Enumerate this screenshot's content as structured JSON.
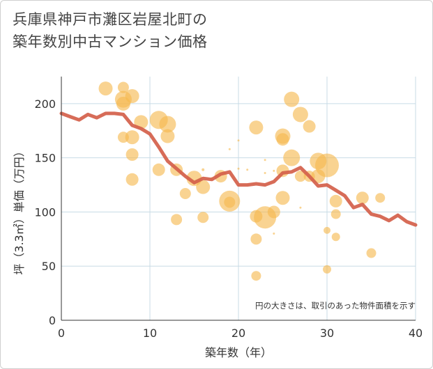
{
  "title": "兵庫県神戸市灘区岩屋北町の\n築年数別中古マンション価格",
  "chart_data": {
    "type": "scatter",
    "xlabel": "築年数（年）",
    "ylabel": "坪（3.3㎡）単価（万円）",
    "xlim": [
      0,
      40
    ],
    "ylim": [
      0,
      225
    ],
    "xticks": [
      0,
      10,
      20,
      30,
      40
    ],
    "yticks": [
      0,
      50,
      100,
      150,
      200
    ],
    "grid": true,
    "annotation": "円の大きさは、取引のあった物件面積を示す",
    "colors": {
      "bubble": "#f5b84e",
      "line": "#d4604a",
      "grid": "#c8dbe6"
    },
    "bubbles": [
      {
        "x": 5,
        "y": 214,
        "s": 10
      },
      {
        "x": 7,
        "y": 215,
        "s": 8
      },
      {
        "x": 8,
        "y": 207,
        "s": 10
      },
      {
        "x": 7,
        "y": 204,
        "s": 12
      },
      {
        "x": 7,
        "y": 200,
        "s": 10
      },
      {
        "x": 9,
        "y": 183,
        "s": 10
      },
      {
        "x": 11,
        "y": 185,
        "s": 13
      },
      {
        "x": 12,
        "y": 181,
        "s": 12
      },
      {
        "x": 7,
        "y": 169,
        "s": 8
      },
      {
        "x": 8,
        "y": 169,
        "s": 10
      },
      {
        "x": 12,
        "y": 170,
        "s": 10
      },
      {
        "x": 8,
        "y": 153,
        "s": 9
      },
      {
        "x": 11,
        "y": 139,
        "s": 9
      },
      {
        "x": 13,
        "y": 139,
        "s": 9
      },
      {
        "x": 8,
        "y": 130,
        "s": 9
      },
      {
        "x": 15,
        "y": 131,
        "s": 11
      },
      {
        "x": 16,
        "y": 123,
        "s": 10
      },
      {
        "x": 14,
        "y": 117,
        "s": 8
      },
      {
        "x": 16,
        "y": 139,
        "s": 2
      },
      {
        "x": 17,
        "y": 131,
        "s": 2
      },
      {
        "x": 18,
        "y": 133,
        "s": 9
      },
      {
        "x": 19,
        "y": 110,
        "s": 15
      },
      {
        "x": 19,
        "y": 109,
        "s": 8
      },
      {
        "x": 13,
        "y": 93,
        "s": 8
      },
      {
        "x": 16,
        "y": 95,
        "s": 8
      },
      {
        "x": 20,
        "y": 166,
        "s": 1.5
      },
      {
        "x": 19,
        "y": 158,
        "s": 1.5
      },
      {
        "x": 20,
        "y": 140,
        "s": 1.5
      },
      {
        "x": 21,
        "y": 139,
        "s": 1.5
      },
      {
        "x": 22,
        "y": 178,
        "s": 10
      },
      {
        "x": 22,
        "y": 96,
        "s": 9
      },
      {
        "x": 22,
        "y": 75,
        "s": 8
      },
      {
        "x": 22,
        "y": 41,
        "s": 7
      },
      {
        "x": 23,
        "y": 95,
        "s": 16
      },
      {
        "x": 23,
        "y": 148,
        "s": 1.5
      },
      {
        "x": 23,
        "y": 136,
        "s": 1.5
      },
      {
        "x": 24,
        "y": 138,
        "s": 1.5
      },
      {
        "x": 24,
        "y": 100,
        "s": 9
      },
      {
        "x": 24,
        "y": 80,
        "s": 1.5
      },
      {
        "x": 25,
        "y": 170,
        "s": 11
      },
      {
        "x": 25,
        "y": 167,
        "s": 9
      },
      {
        "x": 25,
        "y": 138,
        "s": 9
      },
      {
        "x": 25,
        "y": 113,
        "s": 10
      },
      {
        "x": 26,
        "y": 204,
        "s": 11
      },
      {
        "x": 26,
        "y": 150,
        "s": 12
      },
      {
        "x": 27,
        "y": 190,
        "s": 11
      },
      {
        "x": 27,
        "y": 133,
        "s": 8
      },
      {
        "x": 27,
        "y": 104,
        "s": 1.5
      },
      {
        "x": 28,
        "y": 179,
        "s": 9
      },
      {
        "x": 28,
        "y": 133,
        "s": 8
      },
      {
        "x": 29,
        "y": 147,
        "s": 12
      },
      {
        "x": 29,
        "y": 133,
        "s": 10
      },
      {
        "x": 30,
        "y": 143,
        "s": 17
      },
      {
        "x": 30,
        "y": 83,
        "s": 5
      },
      {
        "x": 30,
        "y": 47,
        "s": 6
      },
      {
        "x": 31,
        "y": 110,
        "s": 9
      },
      {
        "x": 31,
        "y": 98,
        "s": 7
      },
      {
        "x": 31,
        "y": 77,
        "s": 6
      },
      {
        "x": 34,
        "y": 113,
        "s": 9
      },
      {
        "x": 35,
        "y": 62,
        "s": 7
      },
      {
        "x": 36,
        "y": 113,
        "s": 7
      }
    ],
    "series": [
      {
        "x": [
          0,
          1,
          2,
          3,
          4,
          5,
          6,
          7,
          8,
          9,
          10,
          11,
          12,
          13,
          14,
          15,
          16,
          17,
          18,
          19,
          20,
          21,
          22,
          23,
          24,
          25,
          26,
          27,
          28,
          29,
          30,
          31,
          32,
          33,
          34,
          35,
          36,
          37,
          38,
          39,
          40
        ],
        "values": [
          191,
          188,
          185,
          190,
          187,
          191,
          191,
          190,
          180,
          177,
          172,
          160,
          147,
          140,
          133,
          127,
          131,
          130,
          135,
          137,
          125,
          125,
          126,
          125,
          128,
          136,
          137,
          141,
          133,
          124,
          125,
          120,
          115,
          104,
          107,
          98,
          96,
          92,
          97,
          91,
          88
        ]
      }
    ]
  }
}
